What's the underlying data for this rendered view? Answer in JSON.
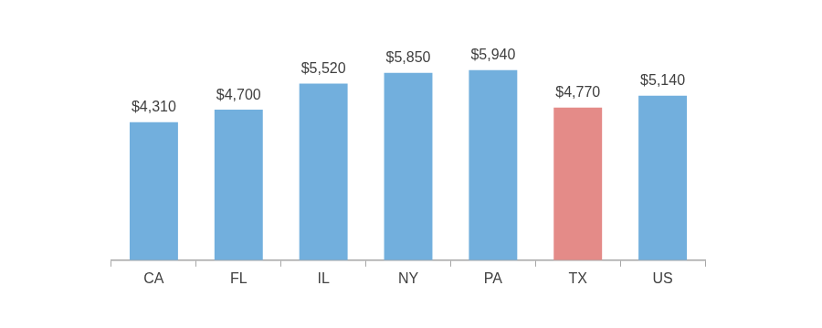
{
  "chart_data": {
    "type": "bar",
    "categories": [
      "CA",
      "FL",
      "IL",
      "NY",
      "PA",
      "TX",
      "US"
    ],
    "values": [
      4310,
      4700,
      5520,
      5850,
      5940,
      4770,
      5140
    ],
    "value_labels": [
      "$4,310",
      "$4,700",
      "$5,520",
      "$5,850",
      "$5,940",
      "$4,770",
      "$5,140"
    ],
    "colors": [
      "#72afdd",
      "#72afdd",
      "#72afdd",
      "#72afdd",
      "#72afdd",
      "#e48b88",
      "#72afdd"
    ],
    "ylim": [
      0,
      7500
    ],
    "grid": false,
    "data_labels": true,
    "tick_labels": "x"
  }
}
